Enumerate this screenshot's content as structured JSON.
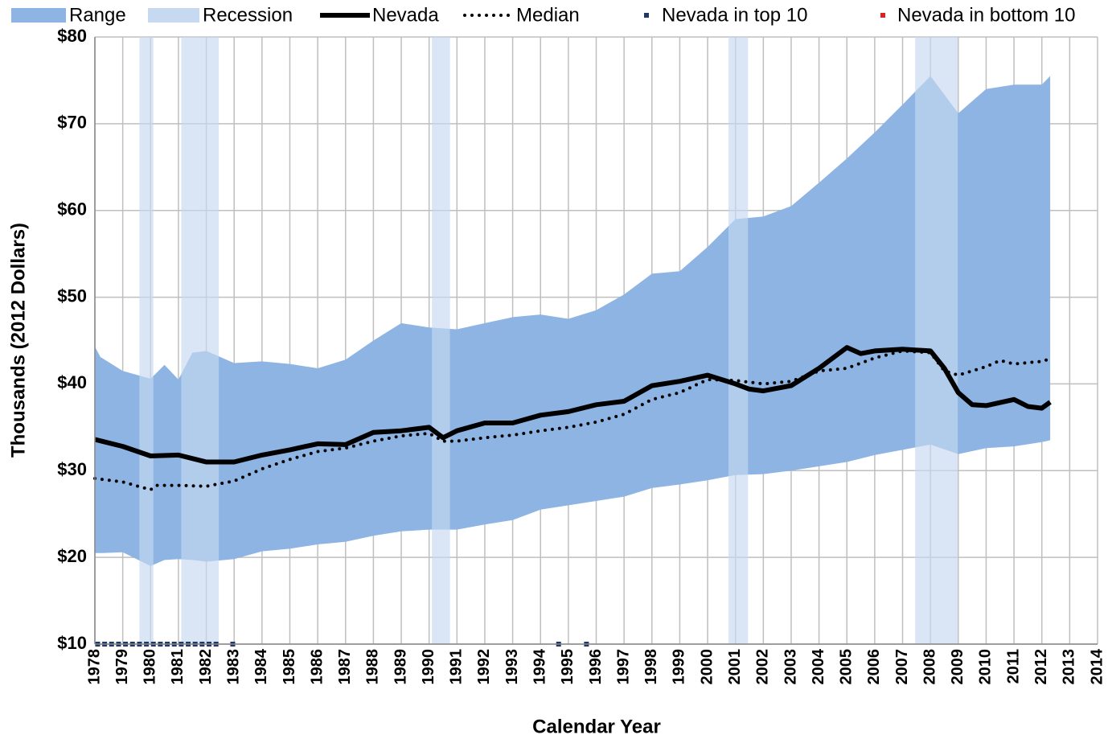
{
  "chart_data": {
    "type": "line",
    "y_label": "Thousands (2012 Dollars)",
    "x_label": "Calendar Year",
    "xlim": [
      1978,
      2014
    ],
    "xticks": [
      1978,
      1979,
      1980,
      1981,
      1982,
      1983,
      1984,
      1985,
      1986,
      1987,
      1988,
      1989,
      1990,
      1991,
      1992,
      1993,
      1994,
      1995,
      1996,
      1997,
      1998,
      1999,
      2000,
      2001,
      2002,
      2003,
      2004,
      2005,
      2006,
      2007,
      2008,
      2009,
      2010,
      2011,
      2012,
      2013,
      2014
    ],
    "ylim": [
      10,
      80
    ],
    "yticks": [
      {
        "value": 10,
        "label": "$10"
      },
      {
        "value": 20,
        "label": "$20"
      },
      {
        "value": 30,
        "label": "$30"
      },
      {
        "value": 40,
        "label": "$40"
      },
      {
        "value": 50,
        "label": "$50"
      },
      {
        "value": 60,
        "label": "$60"
      },
      {
        "value": 70,
        "label": "$70"
      },
      {
        "value": 80,
        "label": "$80"
      }
    ],
    "grid": true,
    "series": [
      {
        "name": "Range",
        "kind": "range",
        "color": "#8eb4e3",
        "x": [
          1978,
          1978.2,
          1979,
          1980,
          1980.5,
          1981,
          1981.5,
          1982,
          1983,
          1984,
          1985,
          1986,
          1987,
          1988,
          1989,
          1990,
          1991,
          1992,
          1993,
          1994,
          1995,
          1996,
          1997,
          1998,
          1999,
          2000,
          2001,
          2002,
          2003,
          2004,
          2005,
          2006,
          2007,
          2008,
          2009,
          2010,
          2011,
          2012,
          2012.3
        ],
        "low": [
          20.5,
          20.5,
          20.6,
          19.0,
          19.7,
          19.8,
          19.7,
          19.5,
          19.8,
          20.7,
          21.0,
          21.5,
          21.8,
          22.5,
          23.0,
          23.2,
          23.2,
          23.8,
          24.3,
          25.5,
          26.0,
          26.5,
          27.0,
          28.0,
          28.4,
          28.9,
          29.5,
          29.6,
          30.0,
          30.5,
          31.0,
          31.8,
          32.4,
          33.0,
          31.9,
          32.6,
          32.8,
          33.3,
          33.5
        ],
        "high": [
          44.3,
          43.1,
          41.5,
          40.6,
          42.2,
          40.5,
          43.6,
          43.8,
          42.4,
          42.6,
          42.3,
          41.8,
          42.8,
          45.0,
          47.0,
          46.5,
          46.3,
          47.0,
          47.7,
          48.0,
          47.5,
          48.5,
          50.3,
          52.7,
          53.0,
          55.8,
          59.0,
          59.3,
          60.5,
          63.2,
          66.0,
          69.0,
          72.2,
          75.5,
          71.2,
          74.0,
          74.5,
          74.5,
          75.5
        ]
      },
      {
        "name": "Recession",
        "kind": "spans",
        "color": "#c6d9f1",
        "spans": [
          [
            1979.6,
            1980.1
          ],
          [
            1981.1,
            1982.45
          ],
          [
            1990.1,
            1990.75
          ],
          [
            2000.75,
            2001.45
          ],
          [
            2007.45,
            2008.98
          ]
        ]
      },
      {
        "name": "Nevada",
        "kind": "line",
        "color": "#000000",
        "x": [
          1978,
          1979,
          1980,
          1981,
          1982,
          1983,
          1984,
          1985,
          1986,
          1987,
          1988,
          1989,
          1990,
          1990.5,
          1991,
          1992,
          1993,
          1994,
          1995,
          1996,
          1997,
          1998,
          1999,
          2000,
          2001,
          2001.5,
          2002,
          2003,
          2004,
          2005,
          2005.5,
          2006,
          2007,
          2008,
          2008.5,
          2009,
          2009.5,
          2010,
          2011,
          2011.5,
          2012,
          2012.3
        ],
        "values": [
          33.6,
          32.8,
          31.7,
          31.8,
          31.0,
          31.0,
          31.8,
          32.4,
          33.1,
          33.0,
          34.4,
          34.6,
          35.0,
          33.8,
          34.6,
          35.5,
          35.5,
          36.4,
          36.8,
          37.6,
          38.0,
          39.8,
          40.3,
          41.0,
          40.0,
          39.4,
          39.2,
          39.8,
          41.8,
          44.2,
          43.5,
          43.8,
          44.0,
          43.8,
          41.8,
          39.0,
          37.6,
          37.5,
          38.2,
          37.4,
          37.2,
          37.9
        ]
      },
      {
        "name": "Median",
        "kind": "dotted",
        "color": "#000000",
        "x": [
          1978,
          1979,
          1980,
          1980.2,
          1981,
          1982,
          1983,
          1984,
          1985,
          1986,
          1987,
          1988,
          1989,
          1990,
          1990.5,
          1991,
          1992,
          1993,
          1994,
          1995,
          1996,
          1997,
          1998,
          1999,
          2000,
          2001,
          2002,
          2003,
          2004,
          2005,
          2006,
          2007,
          2008,
          2008.5,
          2009,
          2010,
          2010.5,
          2011,
          2012,
          2012.3
        ],
        "values": [
          29.1,
          28.7,
          27.8,
          28.3,
          28.3,
          28.2,
          28.8,
          30.2,
          31.3,
          32.2,
          32.6,
          33.4,
          34.0,
          34.3,
          33.4,
          33.4,
          33.8,
          34.1,
          34.6,
          35.0,
          35.6,
          36.5,
          38.2,
          39.0,
          40.5,
          40.4,
          40.0,
          40.3,
          41.5,
          41.8,
          43.0,
          43.8,
          43.6,
          41.5,
          41.0,
          42.0,
          42.7,
          42.3,
          42.6,
          42.9
        ]
      },
      {
        "name": "Nevada in top 10",
        "kind": "markers",
        "color": "#1f3864",
        "x": [
          1978.1,
          1978.35,
          1978.6,
          1978.85,
          1979.1,
          1979.35,
          1979.6,
          1979.85,
          1980.1,
          1980.35,
          1980.6,
          1980.85,
          1981.1,
          1981.35,
          1981.6,
          1981.85,
          1982.1,
          1982.35,
          1982.95,
          1994.65,
          1995.65
        ],
        "values": [
          10,
          10,
          10,
          10,
          10,
          10,
          10,
          10,
          10,
          10,
          10,
          10,
          10,
          10,
          10,
          10,
          10,
          10,
          10,
          10,
          10
        ]
      },
      {
        "name": "Nevada in bottom 10",
        "kind": "markers",
        "color": "#e02020",
        "x": [],
        "values": []
      }
    ]
  }
}
